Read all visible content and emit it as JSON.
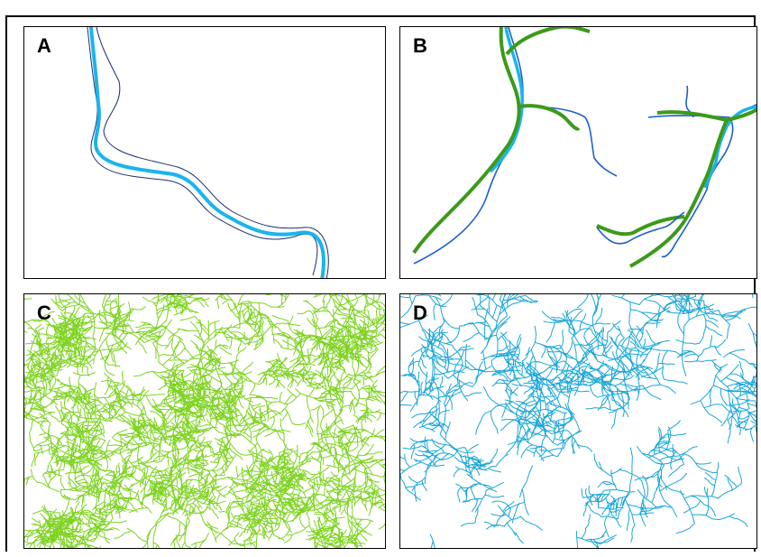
{
  "panels": [
    {
      "label": "A"
    },
    {
      "label": "B"
    },
    {
      "label": "C"
    },
    {
      "label": "D"
    }
  ],
  "colors": {
    "river_cyan": "#1ab4ee",
    "river_dark_outline": "#1a2e6e",
    "river_blue": "#1e5fd0",
    "river_green": "#3c9a1a",
    "network_green": "#7ed321",
    "network_cyan": "#1aa6d8"
  },
  "legend": []
}
